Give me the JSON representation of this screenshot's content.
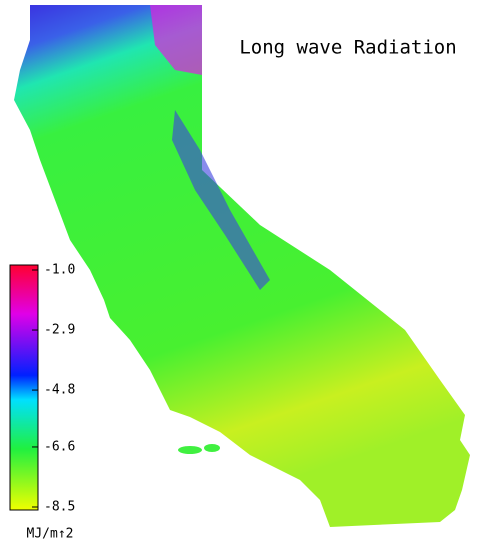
{
  "title": "Long wave Radiation",
  "colorbar": {
    "lim": [
      -8.5,
      -1.0
    ],
    "ticks": [
      {
        "value": -1.0,
        "label": "-1.0"
      },
      -2.9,
      -4.8,
      -6.6,
      -8.5
    ],
    "unit": "MJ/m↑2"
  }
}
